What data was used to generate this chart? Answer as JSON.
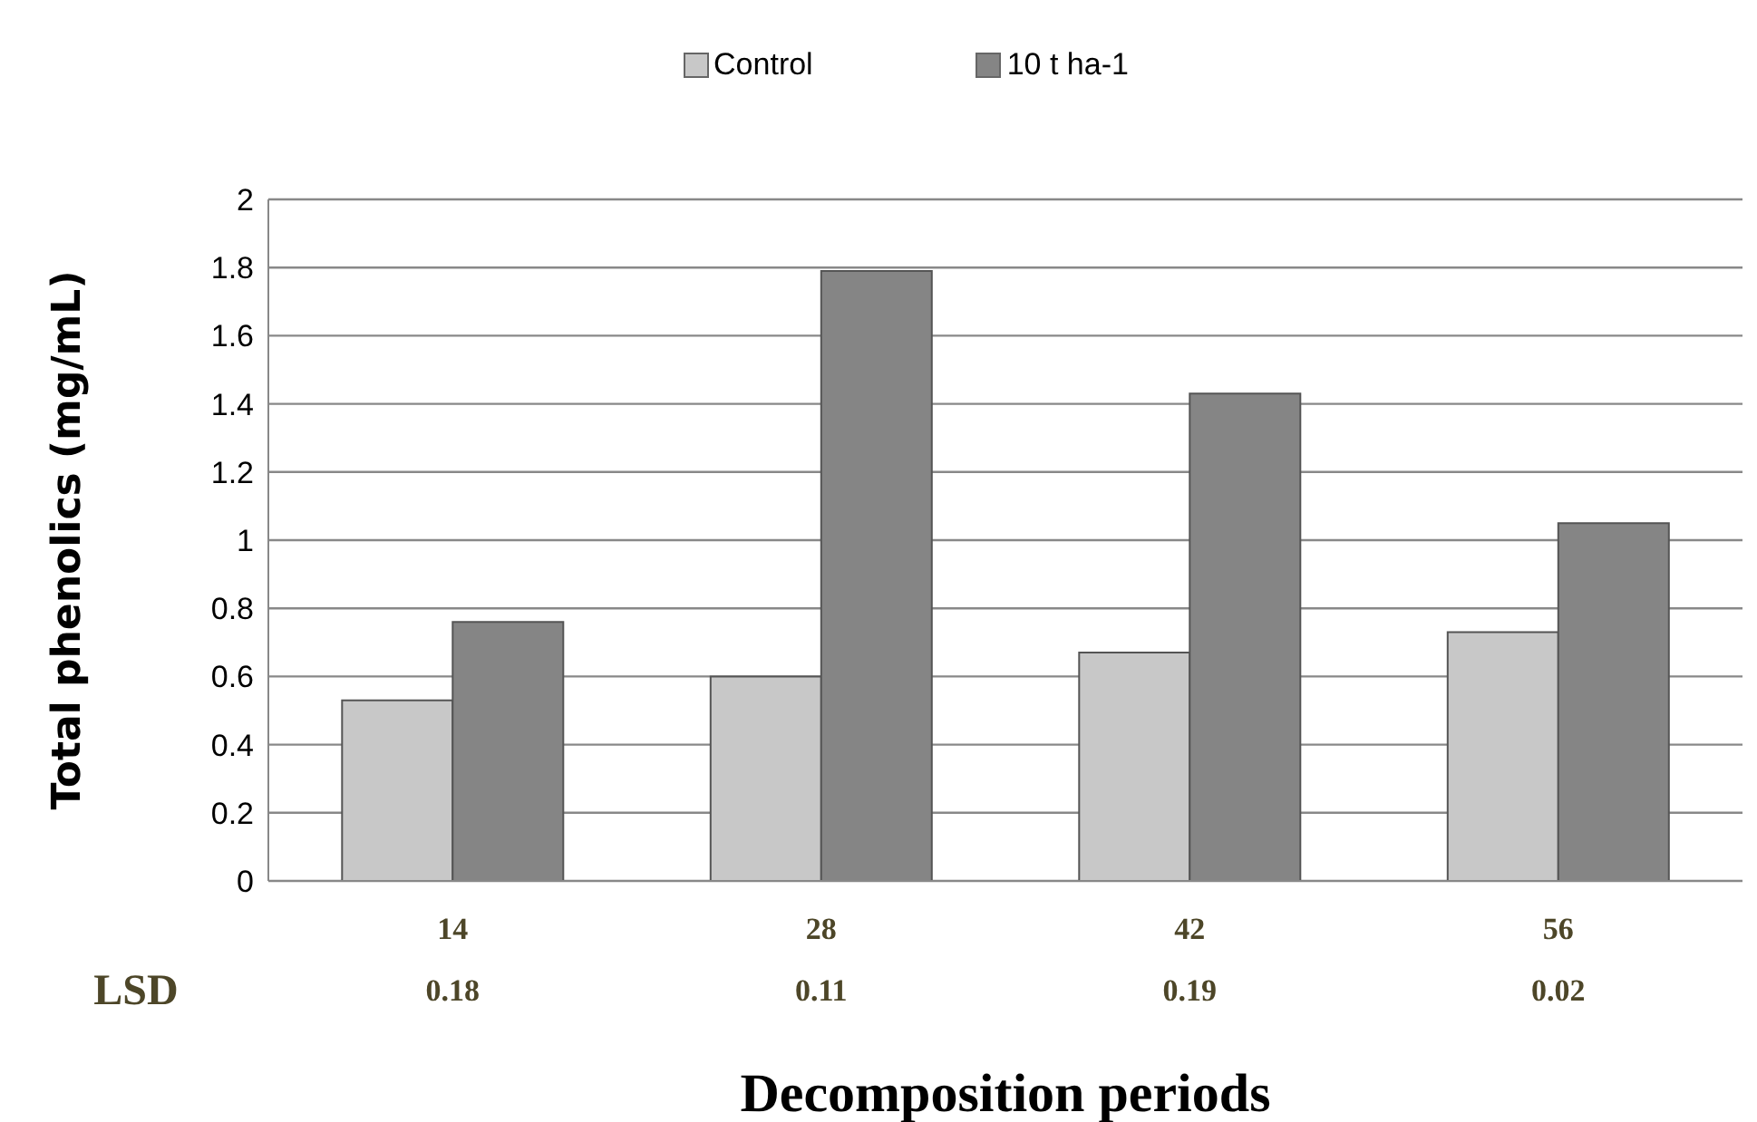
{
  "chart_data": {
    "type": "bar",
    "xlabel": "Decomposition periods",
    "ylabel": "Total phenolics (mg/mL)",
    "categories": [
      "14",
      "28",
      "42",
      "56"
    ],
    "series": [
      {
        "name": "Control",
        "color": "#c8c8c8",
        "values": [
          0.53,
          0.6,
          0.67,
          0.73
        ]
      },
      {
        "name": "10 t ha-1",
        "color": "#858585",
        "values": [
          0.76,
          1.79,
          1.43,
          1.05
        ]
      }
    ],
    "ylim": [
      0,
      2
    ],
    "yticks": [
      0,
      0.2,
      0.4,
      0.6,
      0.8,
      1,
      1.2,
      1.4,
      1.6,
      1.8,
      2
    ],
    "grid": "y",
    "legend": "top",
    "annotations": [
      "LSD",
      "0.18",
      "0.11",
      "0.19",
      "0.02"
    ]
  }
}
